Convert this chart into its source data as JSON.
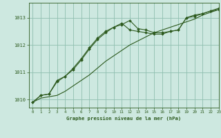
{
  "title": "Graphe pression niveau de la mer (hPa)",
  "bg_color": "#cde8e0",
  "plot_bg_color": "#cde8e0",
  "grid_color": "#8fbfb0",
  "line_color": "#2d5a1e",
  "marker_color": "#2d5a1e",
  "xlim": [
    -0.5,
    23
  ],
  "ylim": [
    1009.7,
    1013.55
  ],
  "yticks": [
    1010,
    1011,
    1012,
    1013
  ],
  "xticks": [
    0,
    1,
    2,
    3,
    4,
    5,
    6,
    7,
    8,
    9,
    10,
    11,
    12,
    13,
    14,
    15,
    16,
    17,
    18,
    19,
    20,
    21,
    22,
    23
  ],
  "series1_x": [
    0,
    1,
    2,
    3,
    4,
    5,
    6,
    7,
    8,
    9,
    10,
    11,
    12,
    13,
    14,
    15,
    16,
    17,
    18,
    19,
    20,
    21,
    22,
    23
  ],
  "series1_y": [
    1009.9,
    1010.15,
    1010.2,
    1010.7,
    1010.85,
    1011.1,
    1011.45,
    1011.85,
    1012.2,
    1012.45,
    1012.65,
    1012.75,
    1012.9,
    1012.6,
    1012.55,
    1012.45,
    1012.45,
    1012.5,
    1012.55,
    1013.0,
    1013.1,
    1013.15,
    1013.25,
    1013.35
  ],
  "series2_x": [
    0,
    1,
    2,
    3,
    4,
    5,
    6,
    7,
    8,
    9,
    10,
    11,
    12,
    13,
    14,
    15,
    16,
    17,
    18,
    19,
    20,
    21,
    22,
    23
  ],
  "series2_y": [
    1009.9,
    1010.05,
    1010.1,
    1010.15,
    1010.3,
    1010.5,
    1010.7,
    1010.9,
    1011.15,
    1011.4,
    1011.6,
    1011.8,
    1012.0,
    1012.15,
    1012.3,
    1012.45,
    1012.55,
    1012.65,
    1012.75,
    1012.85,
    1012.95,
    1013.1,
    1013.2,
    1013.3
  ],
  "series3_x": [
    0,
    1,
    2,
    3,
    4,
    5,
    6,
    7,
    8,
    9,
    10,
    11,
    12,
    13,
    14,
    15,
    16,
    17,
    18,
    19,
    20,
    21,
    22,
    23
  ],
  "series3_y": [
    1009.9,
    1010.15,
    1010.2,
    1010.65,
    1010.85,
    1011.15,
    1011.5,
    1011.9,
    1012.25,
    1012.5,
    1012.65,
    1012.8,
    1012.55,
    1012.5,
    1012.45,
    1012.4,
    1012.4,
    1012.5,
    1012.55,
    1013.0,
    1013.05,
    1013.15,
    1013.25,
    1013.3
  ]
}
